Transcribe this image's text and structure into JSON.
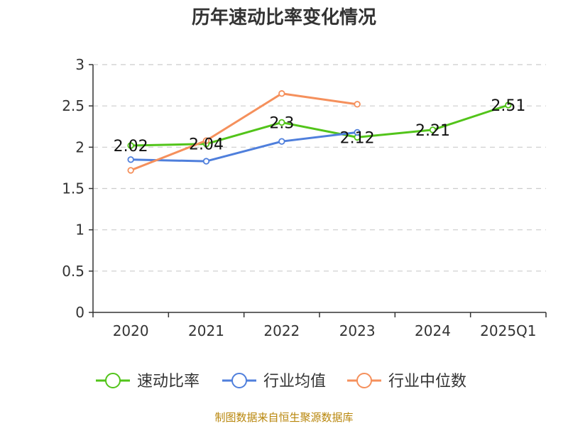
{
  "chart_data": {
    "type": "line",
    "title": "历年速动比率变化情况",
    "categories": [
      "2020",
      "2021",
      "2022",
      "2023",
      "2024",
      "2025Q1"
    ],
    "ylim": [
      0,
      3
    ],
    "yticks": [
      "0",
      "0.5",
      "1",
      "1.5",
      "2",
      "2.5",
      "3"
    ],
    "grid": true,
    "legend_position": "bottom",
    "series": [
      {
        "name": "速动比率",
        "color": "#52c41a",
        "values": [
          2.02,
          2.04,
          2.3,
          2.12,
          2.21,
          2.51
        ],
        "labels": [
          "2.02",
          "2.04",
          "2.3",
          "2.12",
          "2.21",
          "2.51"
        ]
      },
      {
        "name": "行业均值",
        "color": "#4f7fdc",
        "values": [
          1.85,
          1.83,
          2.07,
          2.18,
          null,
          null
        ]
      },
      {
        "name": "行业中位数",
        "color": "#f5905c",
        "values": [
          1.72,
          2.08,
          2.65,
          2.52,
          null,
          null
        ]
      }
    ]
  },
  "source_text": "制图数据来自恒生聚源数据库"
}
